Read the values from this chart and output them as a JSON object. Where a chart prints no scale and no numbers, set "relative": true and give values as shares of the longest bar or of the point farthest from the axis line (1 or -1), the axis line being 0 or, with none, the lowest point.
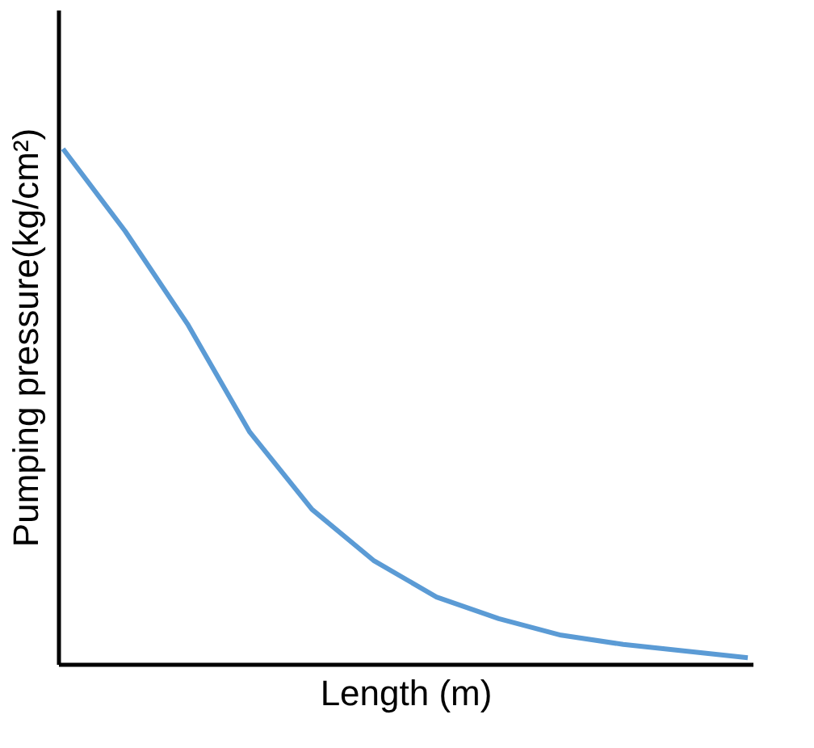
{
  "chart_data": {
    "type": "line",
    "xlabel": "Length (m)",
    "ylabel": "Pumping pressure(kg/cm²)",
    "relative": true,
    "categories": [
      null,
      null,
      null,
      null,
      null,
      null,
      null,
      null,
      null,
      null,
      null,
      null
    ],
    "series": [
      {
        "color": "#5b9bd5",
        "values": [
          1.0,
          0.84,
          0.66,
          0.45,
          0.3,
          0.2,
          0.13,
          0.088,
          0.056,
          0.038,
          0.025,
          0.012
        ]
      }
    ],
    "grid": false,
    "legend": false,
    "marker": "none",
    "line_style": "solid"
  }
}
